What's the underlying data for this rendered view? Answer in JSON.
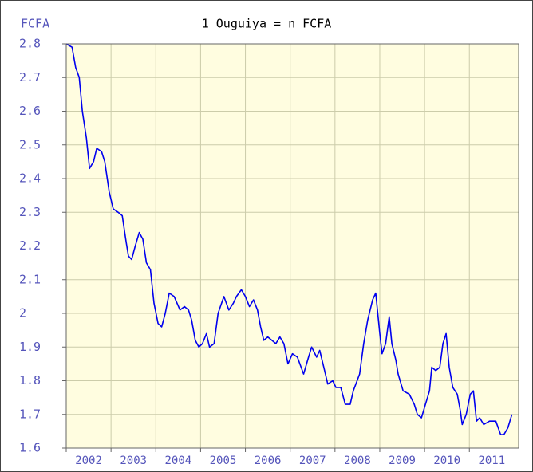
{
  "chart_data": {
    "type": "line",
    "title": "1 Ouguiya = n FCFA",
    "y_label": "FCFA",
    "xlim": [
      2002,
      2012.1
    ],
    "xticks": [
      2002,
      2003,
      2004,
      2005,
      2006,
      2007,
      2008,
      2009,
      2010,
      2011
    ],
    "ylim": [
      1.6,
      2.8
    ],
    "yticks": [
      1.6,
      1.7,
      1.8,
      1.9,
      2,
      2.1,
      2.2,
      2.3,
      2.4,
      2.5,
      2.6,
      2.7,
      2.8
    ],
    "grid": true,
    "series": [
      {
        "color": "#0000ee",
        "x": [
          2002.0,
          2002.13,
          2002.21,
          2002.29,
          2002.36,
          2002.45,
          2002.52,
          2002.61,
          2002.68,
          2002.79,
          2002.86,
          2002.96,
          2003.05,
          2003.16,
          2003.25,
          2003.34,
          2003.39,
          2003.46,
          2003.54,
          2003.63,
          2003.71,
          2003.79,
          2003.88,
          2003.96,
          2004.05,
          2004.13,
          2004.21,
          2004.3,
          2004.41,
          2004.54,
          2004.64,
          2004.73,
          2004.8,
          2004.88,
          2004.96,
          2005.04,
          2005.13,
          2005.2,
          2005.3,
          2005.39,
          2005.52,
          2005.63,
          2005.73,
          2005.8,
          2005.91,
          2006.0,
          2006.09,
          2006.18,
          2006.27,
          2006.34,
          2006.41,
          2006.5,
          2006.59,
          2006.68,
          2006.77,
          2006.86,
          2006.95,
          2007.05,
          2007.16,
          2007.3,
          2007.41,
          2007.48,
          2007.59,
          2007.66,
          2007.75,
          2007.84,
          2007.95,
          2008.02,
          2008.13,
          2008.23,
          2008.34,
          2008.41,
          2008.55,
          2008.64,
          2008.73,
          2008.84,
          2008.91,
          2009.0,
          2009.05,
          2009.13,
          2009.21,
          2009.27,
          2009.36,
          2009.41,
          2009.52,
          2009.66,
          2009.77,
          2009.84,
          2009.93,
          2010.02,
          2010.11,
          2010.16,
          2010.25,
          2010.34,
          2010.41,
          2010.48,
          2010.55,
          2010.63,
          2010.73,
          2010.8,
          2010.84,
          2010.93,
          2011.02,
          2011.09,
          2011.16,
          2011.23,
          2011.32,
          2011.45,
          2011.59,
          2011.7,
          2011.77,
          2011.86,
          2011.95
        ],
        "values": [
          2.8,
          2.79,
          2.73,
          2.7,
          2.6,
          2.52,
          2.43,
          2.45,
          2.49,
          2.48,
          2.45,
          2.36,
          2.31,
          2.3,
          2.29,
          2.21,
          2.17,
          2.16,
          2.2,
          2.24,
          2.22,
          2.15,
          2.13,
          2.03,
          1.97,
          1.96,
          2.0,
          2.06,
          2.05,
          2.01,
          2.02,
          2.01,
          1.98,
          1.92,
          1.9,
          1.91,
          1.94,
          1.9,
          1.91,
          2.0,
          2.05,
          2.01,
          2.03,
          2.05,
          2.07,
          2.05,
          2.02,
          2.04,
          2.01,
          1.96,
          1.92,
          1.93,
          1.92,
          1.91,
          1.93,
          1.91,
          1.85,
          1.88,
          1.87,
          1.82,
          1.87,
          1.9,
          1.87,
          1.89,
          1.84,
          1.79,
          1.8,
          1.78,
          1.78,
          1.73,
          1.73,
          1.77,
          1.82,
          1.91,
          1.98,
          2.04,
          2.06,
          1.94,
          1.88,
          1.91,
          1.99,
          1.91,
          1.86,
          1.82,
          1.77,
          1.76,
          1.73,
          1.7,
          1.69,
          1.73,
          1.77,
          1.84,
          1.83,
          1.84,
          1.91,
          1.94,
          1.84,
          1.78,
          1.76,
          1.71,
          1.67,
          1.7,
          1.76,
          1.77,
          1.68,
          1.69,
          1.67,
          1.68,
          1.68,
          1.64,
          1.64,
          1.66,
          1.7
        ]
      }
    ]
  }
}
